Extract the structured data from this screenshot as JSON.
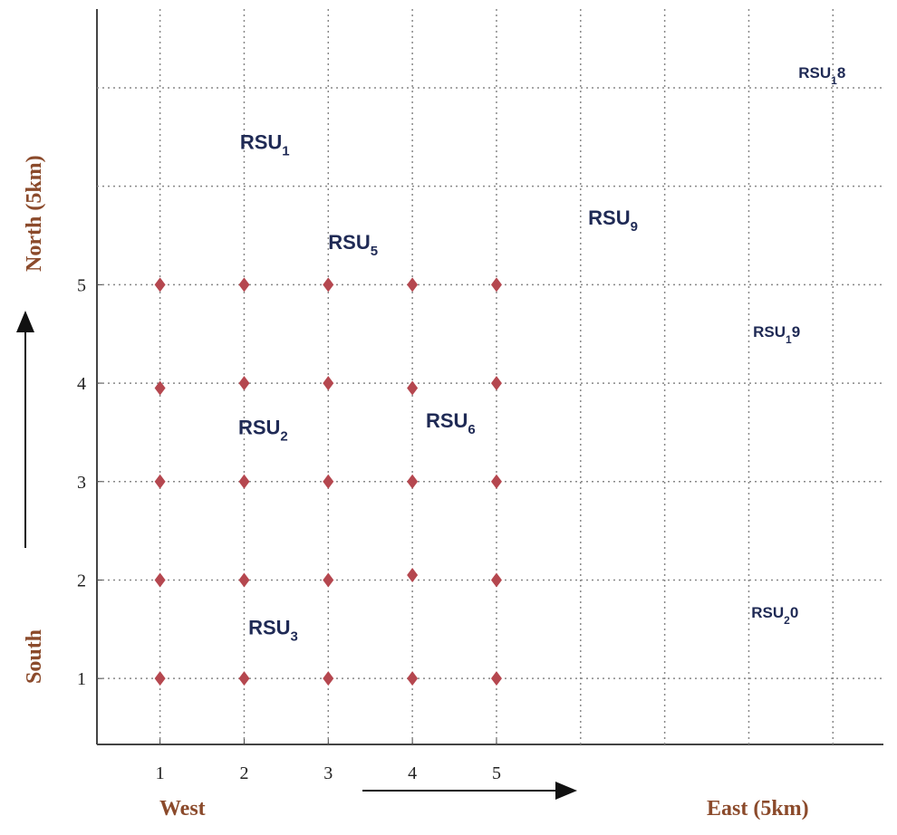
{
  "chart_data": {
    "type": "scatter",
    "x_label_left": "West",
    "x_label_right": "East (5km)",
    "y_label_top": "North (5km)",
    "y_label_bottom": "South",
    "xlim": [
      0.25,
      9.6
    ],
    "ylim": [
      0.33,
      7.8
    ],
    "xticks": [
      1,
      2,
      3,
      4,
      5
    ],
    "yticks": [
      1,
      2,
      3,
      4,
      5
    ],
    "xgrid": [
      1,
      2,
      3,
      4,
      5,
      6,
      7,
      8,
      9
    ],
    "ygrid": [
      1,
      2,
      3,
      4,
      5,
      6,
      7
    ],
    "grid": true,
    "series": [
      {
        "color": "#b5474f",
        "x": [
          1,
          2,
          3,
          4,
          5,
          1,
          2,
          3,
          4,
          5,
          1,
          2,
          3,
          4,
          5,
          1,
          2,
          3,
          4,
          5,
          1,
          2,
          3,
          4,
          5
        ],
        "values": [
          1,
          1,
          1,
          1,
          1,
          2,
          2,
          2,
          2.05,
          2,
          3,
          3,
          3,
          3,
          3,
          3.95,
          4,
          4,
          3.95,
          4,
          5,
          5,
          5,
          5,
          5
        ]
      }
    ],
    "annotations": [
      {
        "text": "RSU",
        "sub": "1",
        "x": 1.95,
        "y": 6.38
      },
      {
        "text": "RSU",
        "sub": "5",
        "x": 3.0,
        "y": 5.36
      },
      {
        "text": "RSU",
        "sub": "9",
        "x": 6.09,
        "y": 5.61
      },
      {
        "text": "RSU",
        "sub": "1",
        "suffix": "8",
        "x": 8.59,
        "y": 7.1,
        "small": true
      },
      {
        "text": "RSU",
        "sub": "1",
        "suffix": "9",
        "x": 8.05,
        "y": 4.47,
        "small": true
      },
      {
        "text": "RSU",
        "sub": "2",
        "x": 1.93,
        "y": 3.48
      },
      {
        "text": "RSU",
        "sub": "6",
        "x": 4.16,
        "y": 3.55
      },
      {
        "text": "RSU",
        "sub": "2",
        "suffix": "0",
        "x": 8.03,
        "y": 1.62,
        "small": true
      },
      {
        "text": "RSU",
        "sub": "3",
        "x": 2.05,
        "y": 1.45
      }
    ]
  }
}
